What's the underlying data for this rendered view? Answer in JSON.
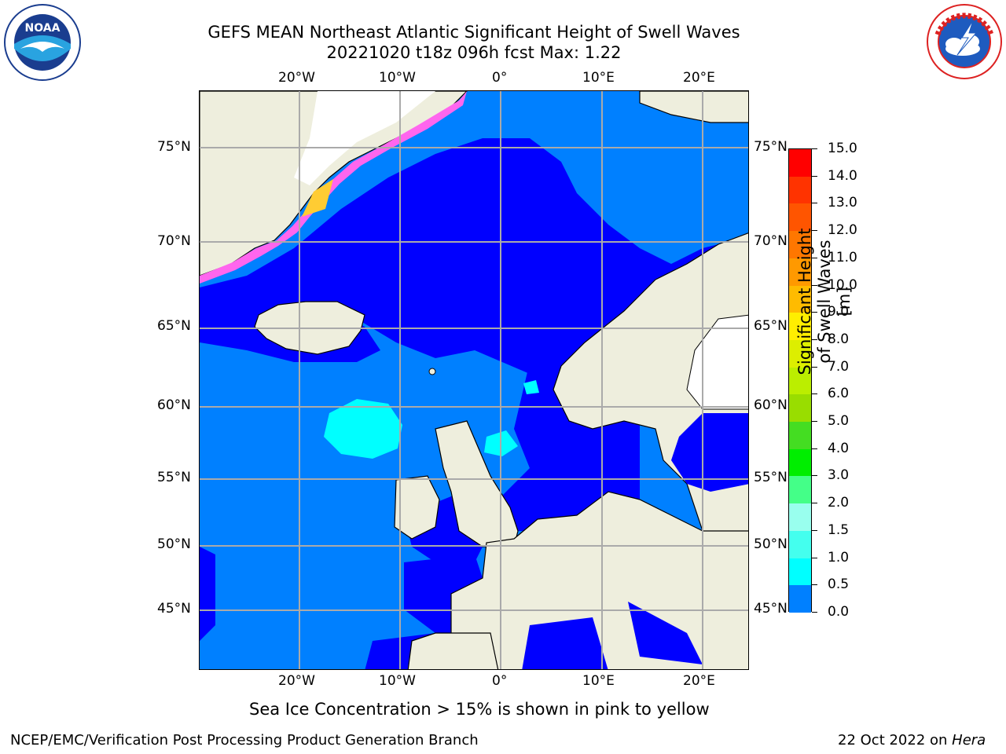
{
  "title": {
    "line1": "GEFS MEAN Northeast Atlantic Significant Height of Swell Waves",
    "line2": "20221020 t18z 096h fcst   Max: 1.22"
  },
  "logos": {
    "left": {
      "name": "NOAA",
      "ring_text": "NATIONAL OCEANIC AND ATMOSPHERIC ADMINISTRATION · U.S. DEPARTMENT OF COMMERCE"
    },
    "right": {
      "name": "National Weather Service",
      "ring_text": "NATIONAL WEATHER SERVICE"
    }
  },
  "map": {
    "lon_labels": [
      "20°W",
      "10°W",
      "0°",
      "10°E",
      "20°E"
    ],
    "lat_labels": [
      "75°N",
      "70°N",
      "65°N",
      "60°N",
      "55°N",
      "50°N",
      "45°N"
    ],
    "extent": {
      "lon": [
        -30,
        25
      ],
      "lat": [
        41,
        78
      ]
    },
    "colors": {
      "land": "#eeeedd",
      "swell_0_0.5": "#0000ff",
      "swell_0.5_1.0": "#0080ff",
      "swell_1.0_1.5": "#00ffff",
      "ice": "#ff44ff",
      "grid": "#aaaaaa"
    }
  },
  "colorbar": {
    "label": "Significant Height of Swell Waves [m]",
    "ticks": [
      "15.0",
      "14.0",
      "13.0",
      "12.0",
      "11.0",
      "10.0",
      "9.0",
      "8.0",
      "7.0",
      "6.0",
      "5.0",
      "4.0",
      "3.0",
      "2.0",
      "1.5",
      "1.0",
      "0.5",
      "0.0"
    ],
    "colors": [
      "#ff0000",
      "#ff3300",
      "#ff5500",
      "#ff7700",
      "#ff9900",
      "#ffbb00",
      "#ffee00",
      "#ddee00",
      "#bbee00",
      "#99dd00",
      "#44dd22",
      "#00ee00",
      "#44ff88",
      "#99ffee",
      "#44ffee",
      "#00ffff",
      "#0080ff",
      "#0000ff"
    ]
  },
  "caption": "Sea Ice Concentration > 15% is shown in pink to yellow",
  "footer": {
    "left": "NCEP/EMC/Verification Post Processing Product Generation Branch",
    "right_date": "22 Oct 2022 on ",
    "right_machine": "Hera"
  }
}
